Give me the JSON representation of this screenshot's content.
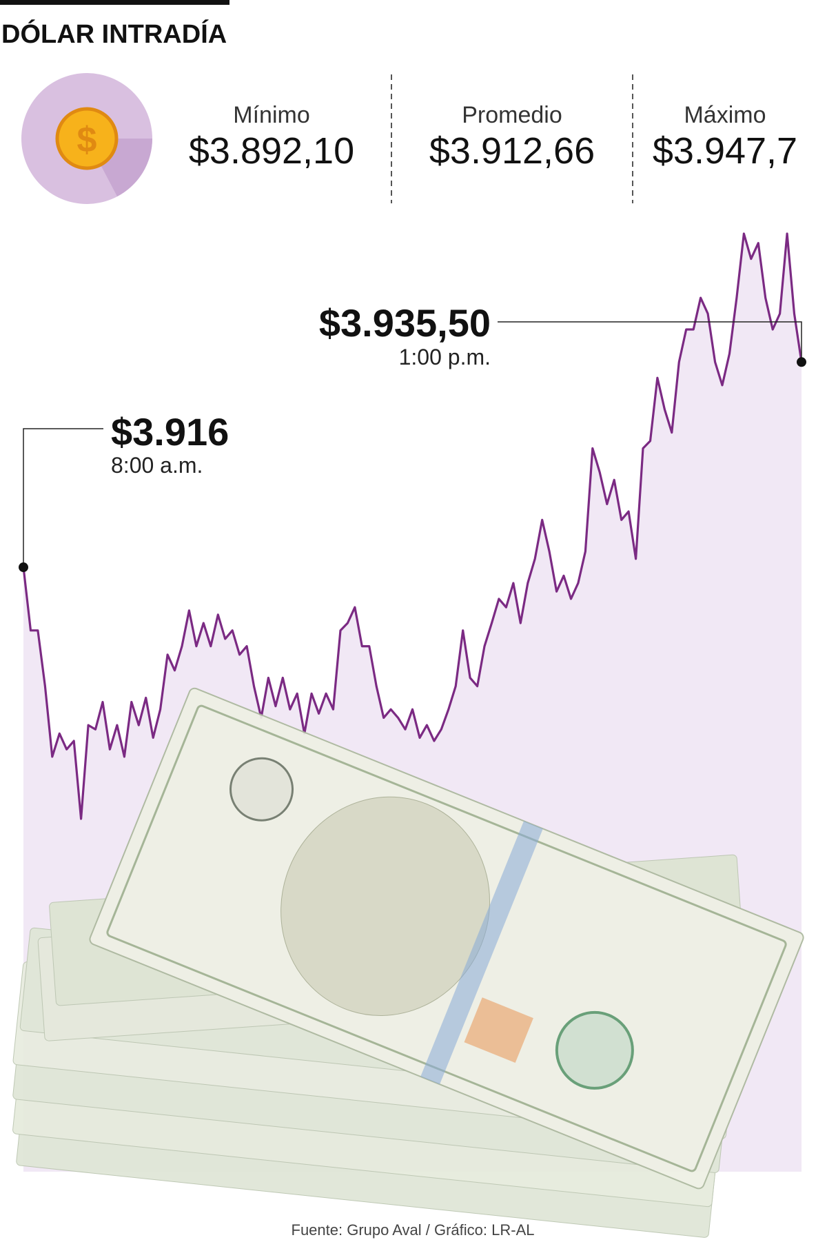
{
  "chart_data": {
    "type": "line",
    "title": "DÓLAR INTRADÍA",
    "stats": [
      {
        "label": "Mínimo",
        "value": "$3.892,10"
      },
      {
        "label": "Promedio",
        "value": "$3.912,66"
      },
      {
        "label": "Máximo",
        "value": "$3.947,7"
      }
    ],
    "start_annotation": {
      "value": "$3.916",
      "time": "8:00 a.m."
    },
    "end_annotation": {
      "value": "$3.935,50",
      "time": "1:00 p.m."
    },
    "color": "#7b2a83",
    "area_color": "#f1e8f5",
    "values": [
      3916.0,
      3910.0,
      3910.0,
      3904.7,
      3898.0,
      3900.2,
      3898.7,
      3899.5,
      3892.1,
      3901.0,
      3900.6,
      3903.2,
      3898.7,
      3901.0,
      3898.0,
      3903.2,
      3901.0,
      3903.6,
      3899.8,
      3902.5,
      3907.7,
      3906.2,
      3908.5,
      3911.9,
      3908.5,
      3910.7,
      3908.5,
      3911.5,
      3909.2,
      3910.0,
      3907.7,
      3908.5,
      3904.7,
      3901.7,
      3905.5,
      3902.8,
      3905.5,
      3902.5,
      3904.0,
      3900.2,
      3904.0,
      3902.1,
      3904.0,
      3902.5,
      3910.0,
      3910.7,
      3912.2,
      3908.5,
      3908.5,
      3904.7,
      3901.7,
      3902.5,
      3901.7,
      3900.6,
      3902.5,
      3899.8,
      3901.0,
      3899.5,
      3900.6,
      3902.5,
      3904.7,
      3910.0,
      3905.5,
      3904.7,
      3908.5,
      3910.7,
      3913.0,
      3912.2,
      3914.5,
      3910.7,
      3914.5,
      3916.8,
      3920.5,
      3917.5,
      3913.7,
      3915.2,
      3913.0,
      3914.5,
      3917.5,
      3927.3,
      3925.0,
      3922.0,
      3924.3,
      3920.5,
      3921.3,
      3916.8,
      3927.3,
      3928.0,
      3934.0,
      3931.0,
      3928.8,
      3935.5,
      3938.6,
      3938.6,
      3941.6,
      3940.1,
      3935.5,
      3933.3,
      3936.3,
      3941.6,
      3947.7,
      3945.3,
      3946.8,
      3941.6,
      3938.6,
      3940.1,
      3947.7,
      3940.1,
      3935.5
    ],
    "source": "Fuente: Grupo Aval / Gráfico: LR-AL"
  }
}
